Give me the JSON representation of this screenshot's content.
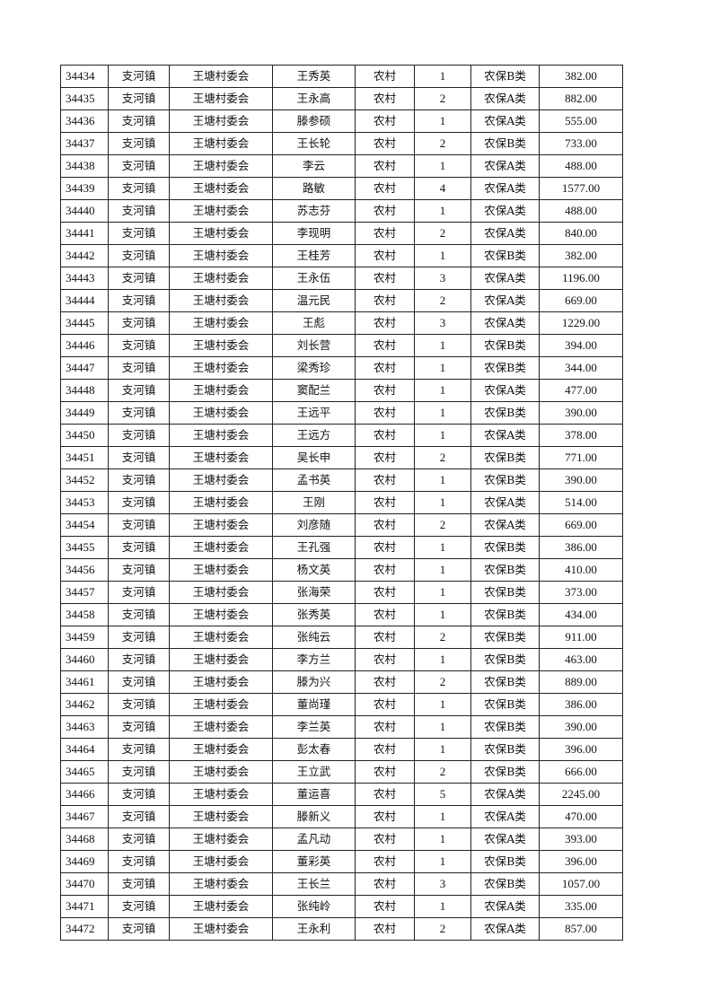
{
  "table": {
    "rows": [
      [
        "34434",
        "支河镇",
        "王塘村委会",
        "王秀英",
        "农村",
        "1",
        "农保B类",
        "382.00"
      ],
      [
        "34435",
        "支河镇",
        "王塘村委会",
        "王永高",
        "农村",
        "2",
        "农保A类",
        "882.00"
      ],
      [
        "34436",
        "支河镇",
        "王塘村委会",
        "滕参硕",
        "农村",
        "1",
        "农保A类",
        "555.00"
      ],
      [
        "34437",
        "支河镇",
        "王塘村委会",
        "王长轮",
        "农村",
        "2",
        "农保B类",
        "733.00"
      ],
      [
        "34438",
        "支河镇",
        "王塘村委会",
        "李云",
        "农村",
        "1",
        "农保A类",
        "488.00"
      ],
      [
        "34439",
        "支河镇",
        "王塘村委会",
        "路敏",
        "农村",
        "4",
        "农保A类",
        "1577.00"
      ],
      [
        "34440",
        "支河镇",
        "王塘村委会",
        "苏志芬",
        "农村",
        "1",
        "农保A类",
        "488.00"
      ],
      [
        "34441",
        "支河镇",
        "王塘村委会",
        "李现明",
        "农村",
        "2",
        "农保A类",
        "840.00"
      ],
      [
        "34442",
        "支河镇",
        "王塘村委会",
        "王桂芳",
        "农村",
        "1",
        "农保B类",
        "382.00"
      ],
      [
        "34443",
        "支河镇",
        "王塘村委会",
        "王永伍",
        "农村",
        "3",
        "农保A类",
        "1196.00"
      ],
      [
        "34444",
        "支河镇",
        "王塘村委会",
        "温元民",
        "农村",
        "2",
        "农保A类",
        "669.00"
      ],
      [
        "34445",
        "支河镇",
        "王塘村委会",
        "王彪",
        "农村",
        "3",
        "农保A类",
        "1229.00"
      ],
      [
        "34446",
        "支河镇",
        "王塘村委会",
        "刘长营",
        "农村",
        "1",
        "农保B类",
        "394.00"
      ],
      [
        "34447",
        "支河镇",
        "王塘村委会",
        "梁秀珍",
        "农村",
        "1",
        "农保B类",
        "344.00"
      ],
      [
        "34448",
        "支河镇",
        "王塘村委会",
        "窦配兰",
        "农村",
        "1",
        "农保A类",
        "477.00"
      ],
      [
        "34449",
        "支河镇",
        "王塘村委会",
        "王远平",
        "农村",
        "1",
        "农保B类",
        "390.00"
      ],
      [
        "34450",
        "支河镇",
        "王塘村委会",
        "王远方",
        "农村",
        "1",
        "农保A类",
        "378.00"
      ],
      [
        "34451",
        "支河镇",
        "王塘村委会",
        "吴长申",
        "农村",
        "2",
        "农保B类",
        "771.00"
      ],
      [
        "34452",
        "支河镇",
        "王塘村委会",
        "孟书英",
        "农村",
        "1",
        "农保B类",
        "390.00"
      ],
      [
        "34453",
        "支河镇",
        "王塘村委会",
        "王刚",
        "农村",
        "1",
        "农保A类",
        "514.00"
      ],
      [
        "34454",
        "支河镇",
        "王塘村委会",
        "刘彦随",
        "农村",
        "2",
        "农保A类",
        "669.00"
      ],
      [
        "34455",
        "支河镇",
        "王塘村委会",
        "王孔强",
        "农村",
        "1",
        "农保B类",
        "386.00"
      ],
      [
        "34456",
        "支河镇",
        "王塘村委会",
        "杨文英",
        "农村",
        "1",
        "农保B类",
        "410.00"
      ],
      [
        "34457",
        "支河镇",
        "王塘村委会",
        "张海荣",
        "农村",
        "1",
        "农保B类",
        "373.00"
      ],
      [
        "34458",
        "支河镇",
        "王塘村委会",
        "张秀英",
        "农村",
        "1",
        "农保B类",
        "434.00"
      ],
      [
        "34459",
        "支河镇",
        "王塘村委会",
        "张纯云",
        "农村",
        "2",
        "农保B类",
        "911.00"
      ],
      [
        "34460",
        "支河镇",
        "王塘村委会",
        "李方兰",
        "农村",
        "1",
        "农保B类",
        "463.00"
      ],
      [
        "34461",
        "支河镇",
        "王塘村委会",
        "滕为兴",
        "农村",
        "2",
        "农保B类",
        "889.00"
      ],
      [
        "34462",
        "支河镇",
        "王塘村委会",
        "董尚瑾",
        "农村",
        "1",
        "农保B类",
        "386.00"
      ],
      [
        "34463",
        "支河镇",
        "王塘村委会",
        "李兰英",
        "农村",
        "1",
        "农保B类",
        "390.00"
      ],
      [
        "34464",
        "支河镇",
        "王塘村委会",
        "彭太春",
        "农村",
        "1",
        "农保B类",
        "396.00"
      ],
      [
        "34465",
        "支河镇",
        "王塘村委会",
        "王立武",
        "农村",
        "2",
        "农保B类",
        "666.00"
      ],
      [
        "34466",
        "支河镇",
        "王塘村委会",
        "董运喜",
        "农村",
        "5",
        "农保A类",
        "2245.00"
      ],
      [
        "34467",
        "支河镇",
        "王塘村委会",
        "滕新义",
        "农村",
        "1",
        "农保A类",
        "470.00"
      ],
      [
        "34468",
        "支河镇",
        "王塘村委会",
        "孟凡动",
        "农村",
        "1",
        "农保A类",
        "393.00"
      ],
      [
        "34469",
        "支河镇",
        "王塘村委会",
        "董彩英",
        "农村",
        "1",
        "农保B类",
        "396.00"
      ],
      [
        "34470",
        "支河镇",
        "王塘村委会",
        "王长兰",
        "农村",
        "3",
        "农保B类",
        "1057.00"
      ],
      [
        "34471",
        "支河镇",
        "王塘村委会",
        "张纯岭",
        "农村",
        "1",
        "农保A类",
        "335.00"
      ],
      [
        "34472",
        "支河镇",
        "王塘村委会",
        "王永利",
        "农村",
        "2",
        "农保A类",
        "857.00"
      ]
    ]
  }
}
